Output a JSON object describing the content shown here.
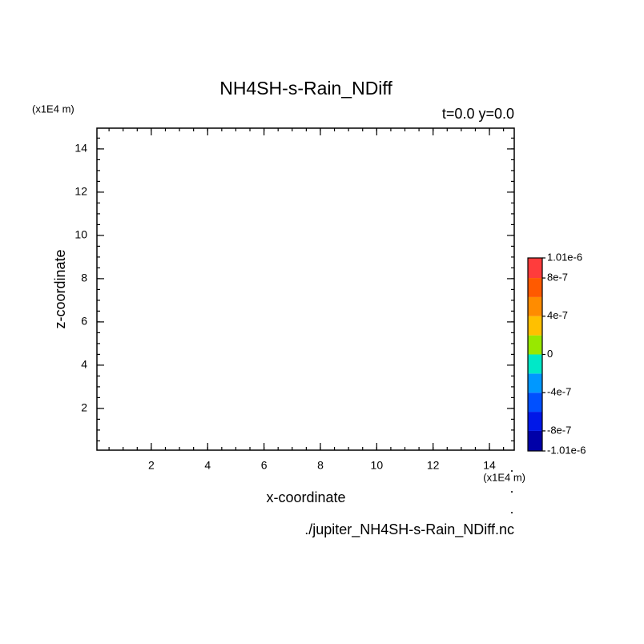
{
  "chart_data": {
    "type": "contour",
    "title": "NH4SH-s-Rain_NDiff",
    "subtitle": "t=0.0 y=0.0",
    "x_label": "x-coordinate",
    "y_label": "z-coordinate",
    "x_unit": "(x1E4 m)",
    "y_unit": "(x1E4 m)",
    "footer": "./jupiter_NH4SH-s-Rain_NDiff.nc",
    "xlim": [
      0.07,
      14.88
    ],
    "ylim": [
      0.07,
      14.96
    ],
    "xticks": [
      2,
      4,
      6,
      8,
      10,
      12,
      14
    ],
    "yticks": [
      2,
      4,
      6,
      8,
      10,
      12,
      14
    ],
    "minor_tick_step": 0.5,
    "colorbar": {
      "levels": [
        -1.01e-06,
        -8e-07,
        -6e-07,
        -4e-07,
        -2e-07,
        0,
        2e-07,
        4e-07,
        6e-07,
        8e-07,
        1.01e-06
      ],
      "colors": [
        "#0000a8",
        "#0018e8",
        "#0050ff",
        "#0098ff",
        "#00e8c8",
        "#98e800",
        "#ffc000",
        "#ff8c00",
        "#ff5a00",
        "#ff3c3c"
      ],
      "ticks": [
        {
          "value": 1.01e-06,
          "label": "1.01e-6"
        },
        8e-07,
        4e-07,
        0,
        -4e-07,
        -8e-07,
        {
          "value": -1.01e-06,
          "label": "-1.01e-6"
        }
      ]
    }
  }
}
